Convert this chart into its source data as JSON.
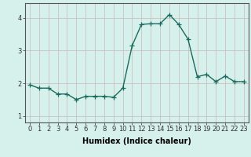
{
  "x": [
    0,
    1,
    2,
    3,
    4,
    5,
    6,
    7,
    8,
    9,
    10,
    11,
    12,
    13,
    14,
    15,
    16,
    17,
    18,
    19,
    20,
    21,
    22,
    23
  ],
  "y": [
    1.95,
    1.85,
    1.85,
    1.67,
    1.67,
    1.5,
    1.6,
    1.6,
    1.6,
    1.57,
    1.85,
    3.15,
    3.8,
    3.82,
    3.82,
    4.1,
    3.8,
    3.35,
    2.2,
    2.27,
    2.05,
    2.22,
    2.05,
    2.05
  ],
  "line_color": "#1a6b5e",
  "marker": "+",
  "markersize": 4,
  "linewidth": 1.0,
  "background_color": "#d6f0ec",
  "grid_color": "#c8b8b8",
  "xlabel": "Humidex (Indice chaleur)",
  "xlabel_fontsize": 7,
  "tick_fontsize": 6,
  "yticks": [
    1,
    2,
    3,
    4
  ],
  "ylim": [
    0.8,
    4.45
  ],
  "xlim": [
    -0.5,
    23.5
  ],
  "spine_color": "#555555"
}
